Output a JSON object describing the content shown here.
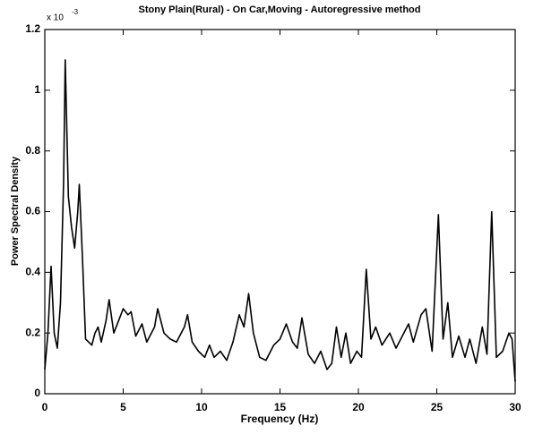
{
  "chart_data": {
    "type": "line",
    "title": "Stony Plain(Rural) - On Car,Moving - Autoregressive method",
    "x_label": "Frequency (Hz)",
    "y_label": "Power Spectral Density",
    "y_multiplier": {
      "base": "x 10",
      "exponent": "-3"
    },
    "color": "#000000",
    "xlim": [
      0,
      30
    ],
    "ylim": [
      0,
      1.2
    ],
    "xticks": [
      0,
      5,
      10,
      15,
      20,
      25,
      30
    ],
    "yticks": [
      0,
      0.2,
      0.4,
      0.6,
      0.8,
      1,
      1.2
    ],
    "grid": false,
    "x": [
      0,
      0.2,
      0.4,
      0.6,
      0.8,
      1.0,
      1.2,
      1.3,
      1.5,
      1.7,
      1.9,
      2.1,
      2.2,
      2.4,
      2.6,
      3.0,
      3.2,
      3.4,
      3.6,
      3.9,
      4.1,
      4.4,
      4.7,
      5.0,
      5.3,
      5.5,
      5.8,
      6.2,
      6.5,
      7.0,
      7.2,
      7.6,
      8.0,
      8.4,
      8.9,
      9.1,
      9.4,
      9.8,
      10.2,
      10.5,
      10.8,
      11.2,
      11.6,
      12.0,
      12.4,
      12.7,
      13.0,
      13.3,
      13.7,
      14.1,
      14.6,
      15.0,
      15.4,
      15.8,
      16.1,
      16.4,
      16.8,
      17.2,
      17.6,
      18.0,
      18.3,
      18.6,
      18.9,
      19.2,
      19.5,
      19.9,
      20.2,
      20.5,
      20.8,
      21.1,
      21.5,
      22.0,
      22.4,
      22.8,
      23.2,
      23.5,
      24.0,
      24.3,
      24.7,
      25.1,
      25.4,
      25.7,
      26.0,
      26.4,
      26.8,
      27.1,
      27.5,
      27.9,
      28.2,
      28.5,
      28.8,
      29.2,
      29.6,
      29.8,
      30.0
    ],
    "values": [
      0.08,
      0.2,
      0.42,
      0.2,
      0.15,
      0.3,
      0.7,
      1.1,
      0.65,
      0.55,
      0.48,
      0.6,
      0.69,
      0.45,
      0.18,
      0.16,
      0.2,
      0.22,
      0.17,
      0.24,
      0.31,
      0.2,
      0.24,
      0.28,
      0.26,
      0.27,
      0.19,
      0.23,
      0.17,
      0.22,
      0.28,
      0.2,
      0.18,
      0.17,
      0.22,
      0.26,
      0.17,
      0.14,
      0.12,
      0.16,
      0.12,
      0.14,
      0.11,
      0.17,
      0.26,
      0.22,
      0.33,
      0.2,
      0.12,
      0.11,
      0.16,
      0.18,
      0.23,
      0.17,
      0.15,
      0.25,
      0.13,
      0.1,
      0.14,
      0.08,
      0.1,
      0.22,
      0.12,
      0.2,
      0.1,
      0.14,
      0.12,
      0.41,
      0.18,
      0.22,
      0.16,
      0.2,
      0.15,
      0.19,
      0.23,
      0.17,
      0.26,
      0.28,
      0.14,
      0.59,
      0.18,
      0.3,
      0.12,
      0.19,
      0.12,
      0.18,
      0.1,
      0.22,
      0.13,
      0.6,
      0.12,
      0.14,
      0.2,
      0.18,
      0.04
    ]
  }
}
